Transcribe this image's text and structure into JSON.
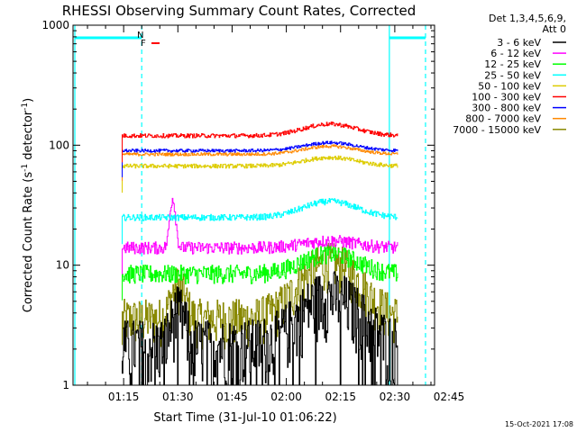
{
  "chart_data": {
    "type": "line",
    "title": "RHESSI Observing Summary Count Rates, Corrected",
    "xlabel": "Start Time (31-Jul-10 01:06:22)",
    "ylabel": "Corrected Count Rate (s⁻¹ detector⁻¹)",
    "ylabel_main": "Corrected Count Rate (s",
    "ylabel_sup1": "-1",
    "ylabel_mid": " detector",
    "ylabel_sup2": "-1",
    "ylabel_end": ")",
    "yscale": "log",
    "ylim": [
      1,
      1000
    ],
    "xlim_minutes": [
      1.0,
      101.0
    ],
    "x_ticks": [
      {
        "label": "01:15",
        "minute": 15
      },
      {
        "label": "01:30",
        "minute": 30
      },
      {
        "label": "01:45",
        "minute": 45
      },
      {
        "label": "02:00",
        "minute": 60
      },
      {
        "label": "02:15",
        "minute": 75
      },
      {
        "label": "02:30",
        "minute": 90
      },
      {
        "label": "02:45",
        "minute": 105
      }
    ],
    "y_ticks": [
      {
        "label": "1",
        "value": 1
      },
      {
        "label": "10",
        "value": 10
      },
      {
        "label": "100",
        "value": 100
      },
      {
        "label": "1000",
        "value": 1000
      }
    ],
    "legend_header": [
      "Det 1,3,4,5,6,9,",
      "Att 0"
    ],
    "series": [
      {
        "name": "3 - 6 keV",
        "color": "#000000",
        "base": 2.2,
        "flare": 3.5,
        "noise": 0.6
      },
      {
        "name": "6 - 12 keV",
        "color": "#ff00ff",
        "base": 14,
        "flare": 2,
        "noise": 0.12,
        "spike": 22
      },
      {
        "name": "12 - 25 keV",
        "color": "#00ff00",
        "base": 8.5,
        "flare": 4,
        "noise": 0.18
      },
      {
        "name": "25 - 50 keV",
        "color": "#00ffff",
        "base": 25,
        "flare": 9,
        "noise": 0.06
      },
      {
        "name": "50 - 100 keV",
        "color": "#ddcc00",
        "base": 67,
        "flare": 12,
        "noise": 0.04
      },
      {
        "name": "100 - 300 keV",
        "color": "#ff0000",
        "base": 120,
        "flare": 30,
        "noise": 0.04
      },
      {
        "name": "300 - 800 keV",
        "color": "#0000ff",
        "base": 90,
        "flare": 15,
        "noise": 0.03
      },
      {
        "name": "800 - 7000 keV",
        "color": "#ff8800",
        "base": 84,
        "flare": 14,
        "noise": 0.03
      },
      {
        "name": "7000 - 15000 keV",
        "color": "#888800",
        "base": 3.6,
        "flare": 7,
        "noise": 0.45
      }
    ],
    "night_markers": {
      "color": "#00ffff",
      "solid_minutes": [
        1.5,
        88.5
      ],
      "dashed_minutes": [
        20,
        98.5
      ]
    },
    "flags": [
      {
        "label": "N",
        "color": "#0088ff"
      },
      {
        "label": "F",
        "color": "#ff0000"
      }
    ]
  },
  "footer": {
    "timestamp": "15-Oct-2021 17:08"
  }
}
